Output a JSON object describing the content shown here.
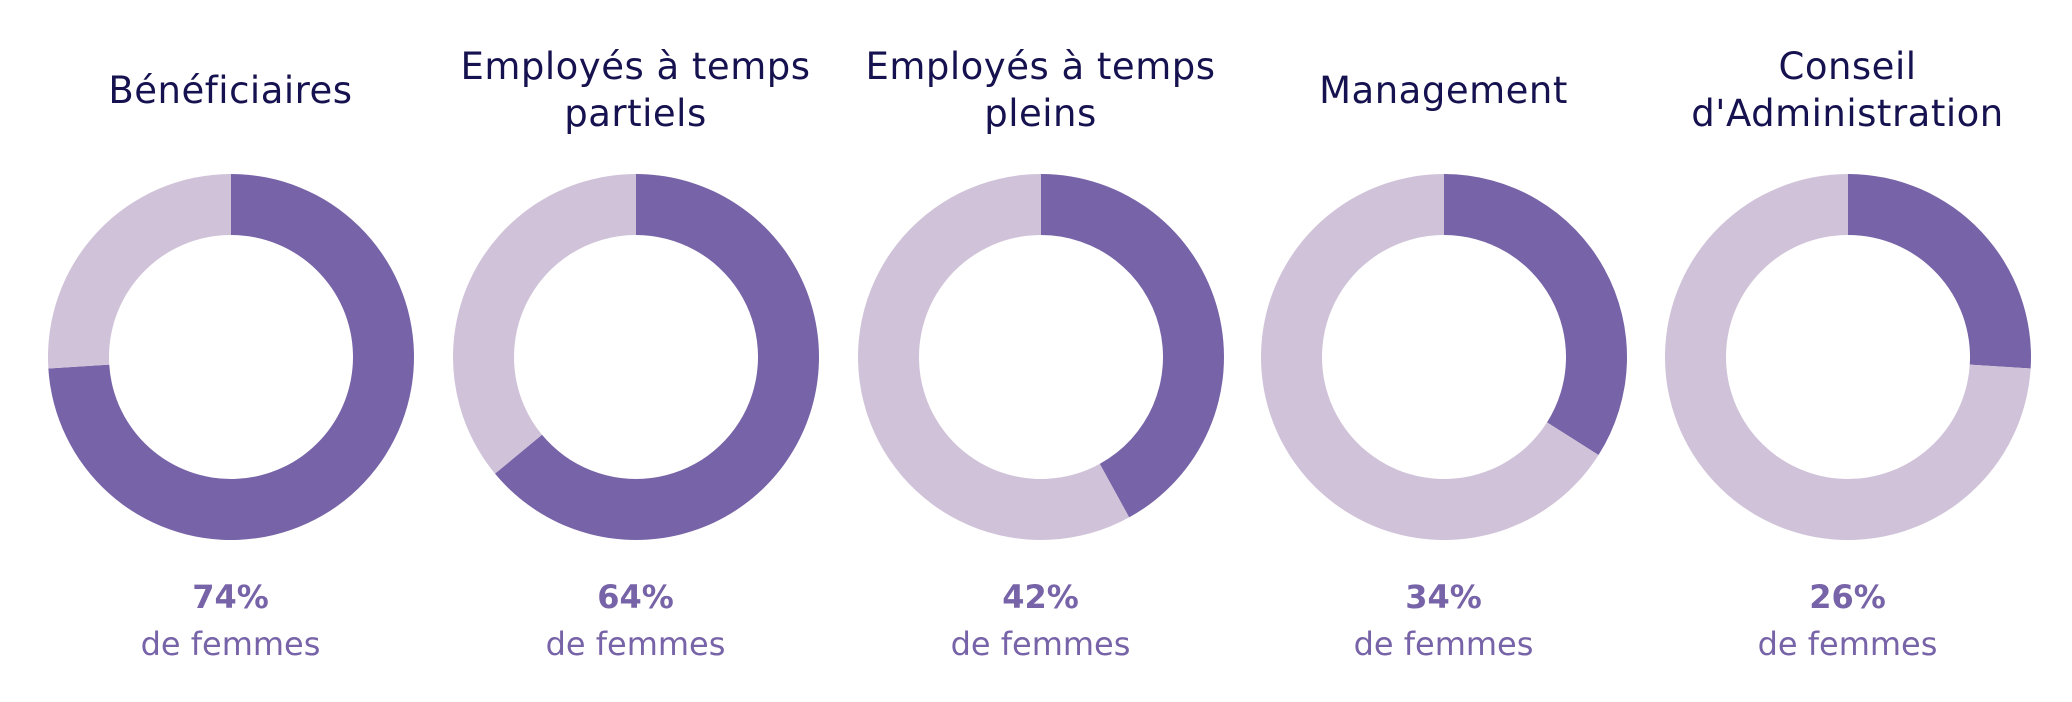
{
  "colors": {
    "women": "#7763a7",
    "other": "#d0c3d9",
    "title": "#16124f",
    "label": "#7763a7"
  },
  "chart_data": [
    {
      "type": "pie",
      "title": "Bénéficiaires",
      "slices": [
        {
          "value": 74,
          "color": "#7763a7"
        },
        {
          "value": 26,
          "color": "#d0c3d9"
        }
      ],
      "percent_label": "74%",
      "caption": "de femmes"
    },
    {
      "type": "pie",
      "title": "Employés à temps partiels",
      "slices": [
        {
          "value": 64,
          "color": "#7763a7"
        },
        {
          "value": 36,
          "color": "#d0c3d9"
        }
      ],
      "percent_label": "64%",
      "caption": "de femmes"
    },
    {
      "type": "pie",
      "title": "Employés à temps pleins",
      "slices": [
        {
          "value": 42,
          "color": "#7763a7"
        },
        {
          "value": 58,
          "color": "#d0c3d9"
        }
      ],
      "percent_label": "42%",
      "caption": "de femmes"
    },
    {
      "type": "pie",
      "title": "Management",
      "slices": [
        {
          "value": 34,
          "color": "#7763a7"
        },
        {
          "value": 66,
          "color": "#d0c3d9"
        }
      ],
      "percent_label": "34%",
      "caption": "de femmes"
    },
    {
      "type": "pie",
      "title": "Conseil d'Administration",
      "slices": [
        {
          "value": 26,
          "color": "#7763a7"
        },
        {
          "value": 74,
          "color": "#d0c3d9"
        }
      ],
      "percent_label": "26%",
      "caption": "de femmes"
    }
  ]
}
